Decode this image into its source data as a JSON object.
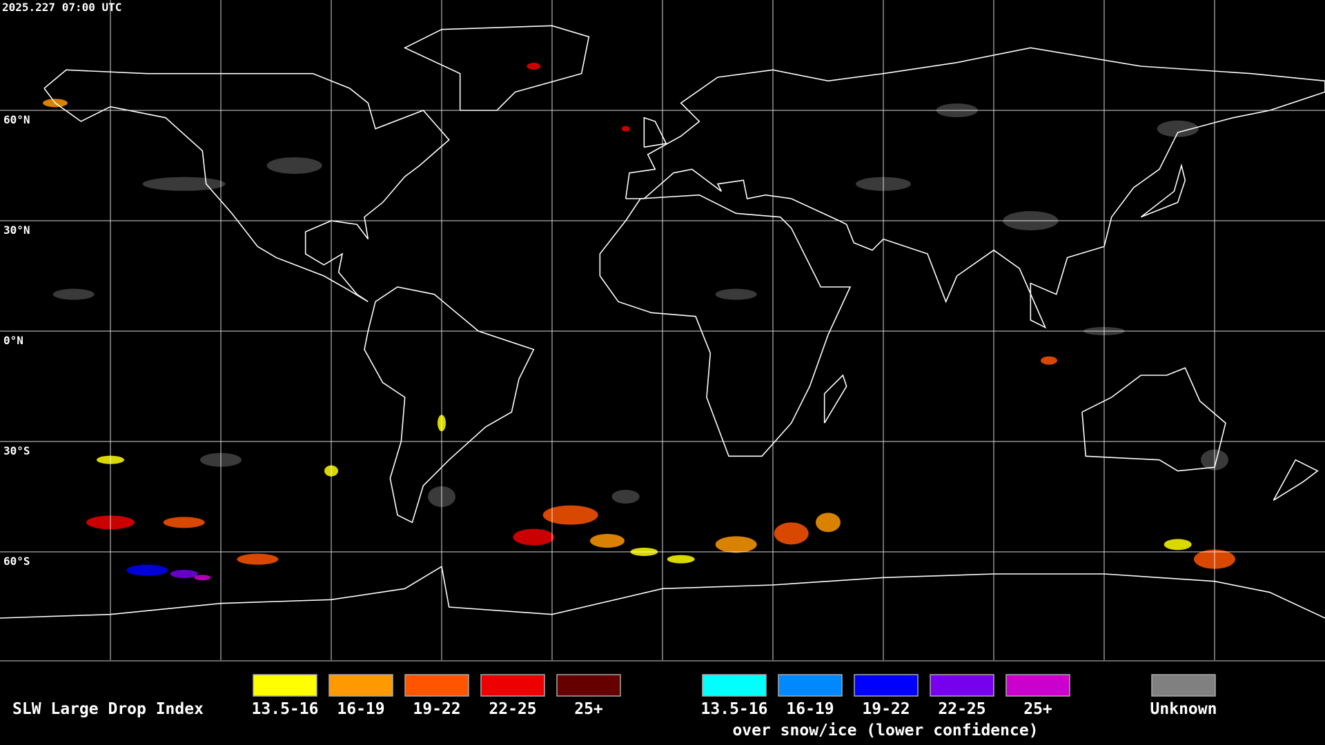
{
  "header": {
    "timestamp": "2025.227 07:00 UTC"
  },
  "map": {
    "latitude_labels": [
      "60°N",
      "30°N",
      "0°N",
      "30°S",
      "60°S"
    ]
  },
  "legend": {
    "title": "SLW Large Drop Index",
    "land": [
      {
        "label": "13.5-16",
        "color": "#ffff00"
      },
      {
        "label": "16-19",
        "color": "#ff9900"
      },
      {
        "label": "19-22",
        "color": "#ff5500"
      },
      {
        "label": "22-25",
        "color": "#ee0000"
      },
      {
        "label": "25+",
        "color": "#660000"
      }
    ],
    "snow_ice": [
      {
        "label": "13.5-16",
        "color": "#00ffff"
      },
      {
        "label": "16-19",
        "color": "#0088ff"
      },
      {
        "label": "19-22",
        "color": "#0000ff"
      },
      {
        "label": "22-25",
        "color": "#7700ee"
      },
      {
        "label": "25+",
        "color": "#cc00cc"
      }
    ],
    "snow_ice_note": "over snow/ice (lower confidence)",
    "unknown": {
      "label": "Unknown",
      "color": "#808080"
    }
  }
}
